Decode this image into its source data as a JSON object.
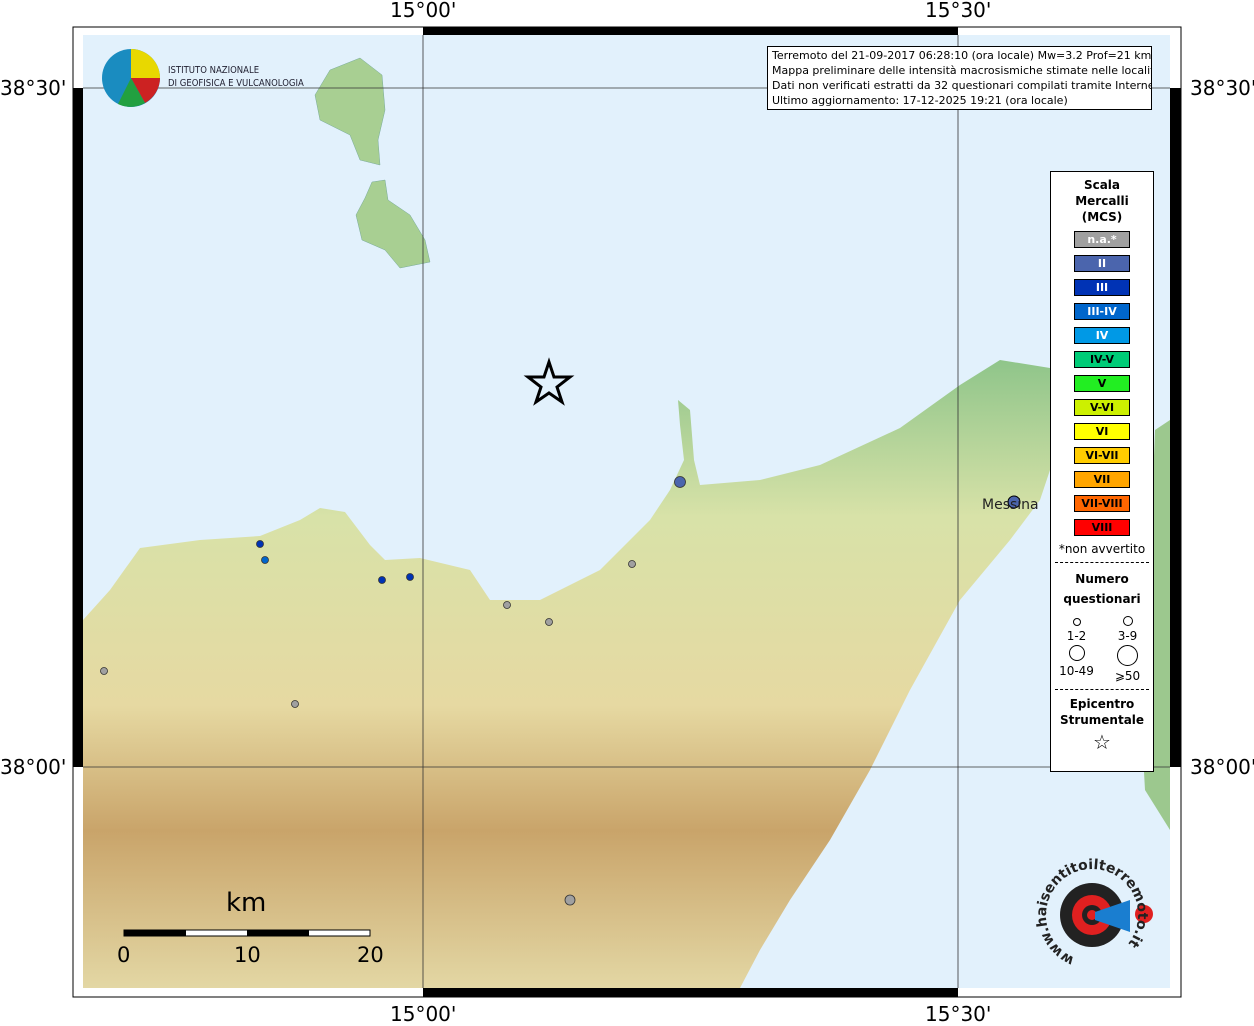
{
  "map": {
    "grid_labels": {
      "lon_left": "15°00'",
      "lon_right": "15°30'",
      "lat_top": "38°30'",
      "lat_bottom": "38°00'"
    },
    "info_lines": [
      "Terremoto del 21-09-2017 06:28:10 (ora locale) Mw=3.2 Prof=21 km",
      "Mappa preliminare delle intensità macrosismiche stimate nelle località",
      "Dati non verificati estratti da 32 questionari compilati tramite Internet.",
      "Ultimo aggiornamento: 17-12-2025 19:21 (ora locale)"
    ],
    "logo_ingv": {
      "line1": "ISTITUTO NAZIONALE",
      "line2": "DI GEOFISICA E VULCANOLOGIA"
    },
    "logo_hsit": "www.haisentitoilterremoto.it",
    "city_label": "Messina",
    "scale_bar": {
      "unit": "km",
      "ticks": [
        "0",
        "10",
        "20"
      ]
    },
    "colors": {
      "sea": "#e2f1fc",
      "frame": "#000000"
    }
  },
  "legend": {
    "title": [
      "Scala",
      "Mercalli",
      "(MCS)"
    ],
    "classes": [
      {
        "label": "n.a.*",
        "color": "#a0a0a0",
        "text": "#ffffff"
      },
      {
        "label": "II",
        "color": "#4b65ad",
        "text": "#ffffff"
      },
      {
        "label": "III",
        "color": "#0033b5",
        "text": "#ffffff"
      },
      {
        "label": "III-IV",
        "color": "#0066cc",
        "text": "#ffffff"
      },
      {
        "label": "IV",
        "color": "#0099e6",
        "text": "#ffffff"
      },
      {
        "label": "IV-V",
        "color": "#00cc77",
        "text": "#000000"
      },
      {
        "label": "V",
        "color": "#22ee22",
        "text": "#000000"
      },
      {
        "label": "V-VI",
        "color": "#ccf000",
        "text": "#000000"
      },
      {
        "label": "VI",
        "color": "#ffff00",
        "text": "#000000"
      },
      {
        "label": "VI-VII",
        "color": "#ffcc00",
        "text": "#000000"
      },
      {
        "label": "VII",
        "color": "#ffa500",
        "text": "#000000"
      },
      {
        "label": "VII-VIII",
        "color": "#ff6600",
        "text": "#000000"
      },
      {
        "label": "VIII",
        "color": "#ff0000",
        "text": "#000000"
      }
    ],
    "footnote": "*non avvertito",
    "questionnaires_title": [
      "Numero",
      "questionari"
    ],
    "questionnaire_classes": [
      "1-2",
      "3-9",
      "10-49",
      "⩾50"
    ],
    "epicenter_title": [
      "Epicentro",
      "Strumentale"
    ]
  },
  "observations": [
    {
      "intensity": "II",
      "size": "3-9"
    },
    {
      "intensity": "II",
      "size": "3-9"
    },
    {
      "intensity": "III",
      "size": "1-2"
    },
    {
      "intensity": "III-IV",
      "size": "1-2"
    },
    {
      "intensity": "III",
      "size": "1-2"
    },
    {
      "intensity": "III",
      "size": "1-2"
    },
    {
      "intensity": "n.a.*",
      "size": "1-2"
    },
    {
      "intensity": "n.a.*",
      "size": "1-2"
    },
    {
      "intensity": "n.a.*",
      "size": "1-2"
    },
    {
      "intensity": "n.a.*",
      "size": "1-2"
    },
    {
      "intensity": "n.a.*",
      "size": "1-2"
    },
    {
      "intensity": "n.a.*",
      "size": "1-2"
    }
  ]
}
